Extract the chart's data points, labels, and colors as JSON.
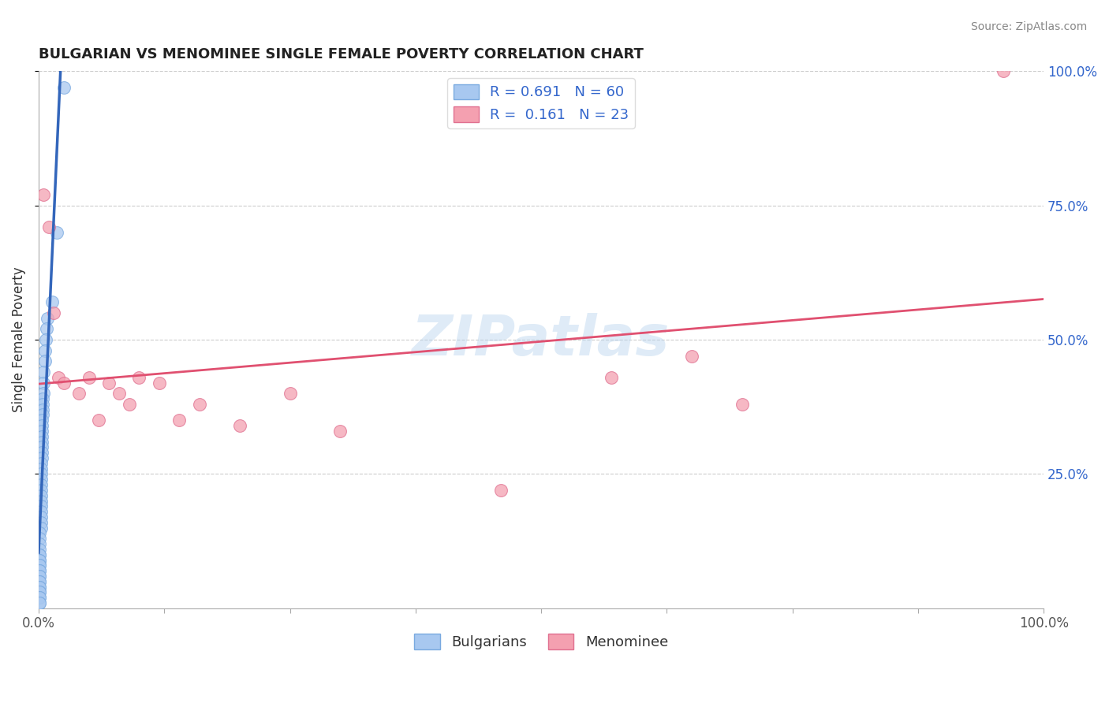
{
  "title": "BULGARIAN VS MENOMINEE SINGLE FEMALE POVERTY CORRELATION CHART",
  "source": "Source: ZipAtlas.com",
  "ylabel": "Single Female Poverty",
  "xlim": [
    0.0,
    1.0
  ],
  "ylim": [
    0.0,
    1.0
  ],
  "x_tick_positions": [
    0.0,
    0.125,
    0.25,
    0.375,
    0.5,
    0.625,
    0.75,
    0.875,
    1.0
  ],
  "x_tick_labels": [
    "0.0%",
    "",
    "",
    "",
    "",
    "",
    "",
    "",
    "100.0%"
  ],
  "y_tick_positions": [
    0.25,
    0.5,
    0.75,
    1.0
  ],
  "y_tick_labels": [
    "25.0%",
    "50.0%",
    "75.0%",
    "100.0%"
  ],
  "bulgarian_color": "#a8c8f0",
  "bulgarian_edge_color": "#7aaae0",
  "menominee_color": "#f4a0b0",
  "menominee_edge_color": "#e07090",
  "bulgarian_line_color": "#3366bb",
  "menominee_line_color": "#e05070",
  "R_bulgarian": 0.691,
  "N_bulgarian": 60,
  "R_menominee": 0.161,
  "N_menominee": 23,
  "legend_text_color": "#3366cc",
  "grid_color": "#cccccc",
  "tick_label_color": "#555555",
  "right_tick_color": "#3366cc",
  "bulgarians_x": [
    0.025,
    0.018,
    0.013,
    0.009,
    0.008,
    0.007,
    0.006,
    0.006,
    0.005,
    0.005,
    0.005,
    0.004,
    0.004,
    0.004,
    0.004,
    0.003,
    0.003,
    0.003,
    0.003,
    0.003,
    0.003,
    0.003,
    0.003,
    0.002,
    0.002,
    0.002,
    0.002,
    0.002,
    0.002,
    0.002,
    0.002,
    0.002,
    0.002,
    0.002,
    0.002,
    0.002,
    0.001,
    0.001,
    0.001,
    0.001,
    0.001,
    0.001,
    0.001,
    0.001,
    0.001,
    0.001,
    0.001,
    0.001,
    0.001,
    0.001,
    0.001,
    0.001,
    0.001,
    0.001,
    0.001,
    0.001,
    0.001,
    0.001,
    0.001,
    0.001
  ],
  "bulgarians_y": [
    0.97,
    0.7,
    0.57,
    0.54,
    0.52,
    0.5,
    0.48,
    0.46,
    0.44,
    0.42,
    0.4,
    0.39,
    0.38,
    0.37,
    0.36,
    0.35,
    0.34,
    0.33,
    0.32,
    0.31,
    0.3,
    0.29,
    0.28,
    0.27,
    0.26,
    0.25,
    0.24,
    0.23,
    0.22,
    0.21,
    0.2,
    0.19,
    0.18,
    0.17,
    0.16,
    0.15,
    0.14,
    0.13,
    0.12,
    0.11,
    0.1,
    0.1,
    0.09,
    0.09,
    0.08,
    0.08,
    0.07,
    0.07,
    0.06,
    0.06,
    0.05,
    0.05,
    0.04,
    0.04,
    0.03,
    0.03,
    0.02,
    0.02,
    0.01,
    0.01
  ],
  "menominee_x": [
    0.005,
    0.01,
    0.015,
    0.02,
    0.025,
    0.04,
    0.05,
    0.06,
    0.07,
    0.08,
    0.09,
    0.1,
    0.12,
    0.14,
    0.16,
    0.2,
    0.25,
    0.3,
    0.46,
    0.57,
    0.65,
    0.7,
    0.96
  ],
  "menominee_y": [
    0.77,
    0.71,
    0.55,
    0.43,
    0.42,
    0.4,
    0.43,
    0.35,
    0.42,
    0.4,
    0.38,
    0.43,
    0.42,
    0.35,
    0.38,
    0.34,
    0.4,
    0.33,
    0.22,
    0.43,
    0.47,
    0.38,
    1.0
  ]
}
